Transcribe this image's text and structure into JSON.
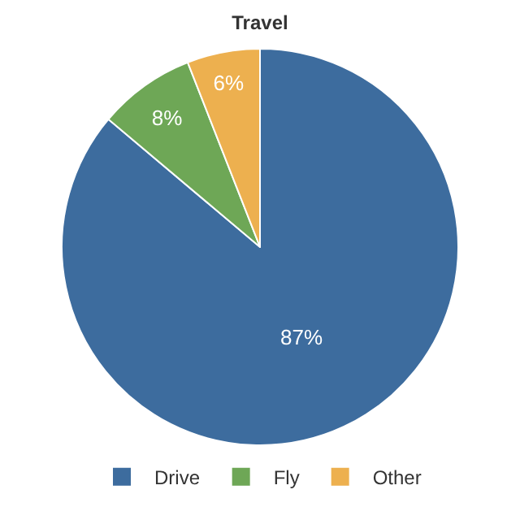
{
  "chart_data": {
    "type": "pie",
    "title": "Travel",
    "categories": [
      "Drive",
      "Fly",
      "Other"
    ],
    "values": [
      87,
      8,
      6
    ],
    "value_labels": [
      "87%",
      "8%",
      "6%"
    ],
    "colors": [
      "#3d6c9e",
      "#6ea756",
      "#edb04f"
    ],
    "legend": "bottom"
  }
}
